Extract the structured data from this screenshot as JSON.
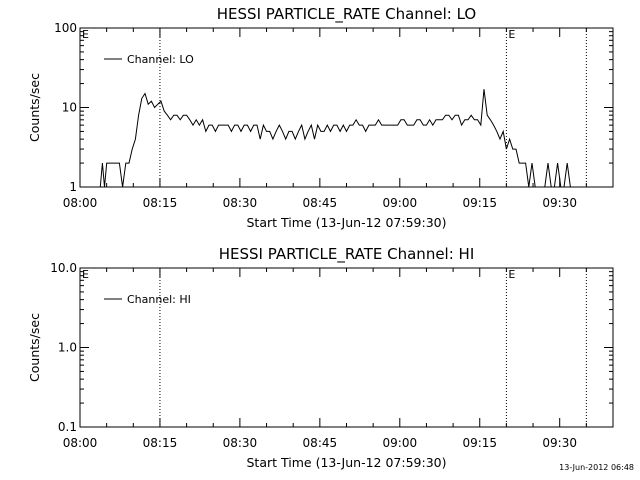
{
  "chart_data": [
    {
      "type": "line",
      "title": "HESSI PARTICLE_RATE Channel: LO",
      "xlabel": "Start Time (13-Jun-12 07:59:30)",
      "ylabel": "Counts/sec",
      "yscale": "log",
      "ylim": [
        1,
        100
      ],
      "yticks": [
        1,
        10,
        100
      ],
      "ytick_labels": [
        "1",
        "10",
        "100"
      ],
      "xlim_min": [
        0,
        100
      ],
      "xtick_labels": [
        "08:00",
        "08:15",
        "08:30",
        "08:45",
        "09:00",
        "09:15",
        "09:30"
      ],
      "xtick_min": [
        0,
        15,
        30,
        45,
        60,
        75,
        90
      ],
      "event_markers": [
        {
          "t_min": 15,
          "label": ""
        },
        {
          "t_min": 80,
          "label": "E"
        },
        {
          "t_min": 95,
          "label": ""
        }
      ],
      "start_label": "E",
      "series": [
        {
          "name": "Channel: LO",
          "t_min": [
            3.8,
            4.2,
            4.6,
            5,
            5.6,
            6.2,
            6.8,
            7.4,
            8,
            8.6,
            9.2,
            9.8,
            10.4,
            11,
            11.6,
            12.2,
            12.8,
            13.4,
            14,
            14.6,
            15.2,
            15.8,
            16.4,
            17,
            17.6,
            18.2,
            18.8,
            19.4,
            20,
            20.6,
            21.2,
            21.8,
            22.4,
            23,
            23.6,
            24.2,
            24.8,
            25.4,
            26,
            26.6,
            27.2,
            27.8,
            28.4,
            29,
            29.6,
            30.2,
            30.8,
            31.4,
            32,
            32.6,
            33.2,
            33.8,
            34.4,
            35,
            35.6,
            36.2,
            36.8,
            37.4,
            38,
            38.6,
            39.2,
            39.8,
            40.4,
            41,
            41.6,
            42.2,
            42.8,
            43.4,
            44,
            44.6,
            45.2,
            45.8,
            46.4,
            47,
            47.6,
            48.2,
            48.8,
            49.4,
            50,
            50.6,
            51.2,
            51.8,
            52.4,
            53,
            53.6,
            54.2,
            54.8,
            55.4,
            56,
            56.6,
            57.2,
            57.8,
            58.4,
            59,
            59.6,
            60.2,
            60.8,
            61.4,
            62,
            62.6,
            63.2,
            63.8,
            64.4,
            65,
            65.6,
            66.2,
            66.8,
            67.4,
            68,
            68.6,
            69.2,
            69.8,
            70.4,
            71,
            71.6,
            72.2,
            72.8,
            73.4,
            74,
            74.6,
            75.2,
            75.8,
            76.4,
            77,
            77.6,
            78.2,
            78.8,
            79.4,
            80,
            80.6,
            81.2,
            81.8,
            82.4,
            83,
            83.6,
            84.2,
            84.8,
            85.4,
            86,
            86.6,
            87.2,
            87.8,
            88.4,
            89,
            89.6,
            90.2,
            90.8,
            91.4,
            92,
            92.6,
            93.2,
            93.8,
            94.4
          ],
          "values": [
            1,
            2,
            1,
            2,
            2,
            2,
            2,
            2,
            1,
            2,
            2,
            3,
            4,
            8,
            13,
            15,
            11,
            12,
            10,
            11,
            12,
            9,
            8,
            7,
            8,
            8,
            7,
            8,
            8,
            7,
            6,
            7,
            6,
            7,
            5,
            6,
            6,
            5,
            6,
            6,
            6,
            6,
            5,
            6,
            6,
            5,
            6,
            6,
            5,
            6,
            6,
            4,
            6,
            5,
            5,
            4,
            5,
            6,
            5,
            4,
            5,
            5,
            4,
            5,
            6,
            4,
            5,
            6,
            4,
            6,
            5,
            5,
            6,
            5,
            6,
            6,
            5,
            6,
            5,
            6,
            6,
            7,
            6,
            6,
            5,
            6,
            6,
            6,
            7,
            6,
            6,
            6,
            6,
            6,
            6,
            7,
            7,
            6,
            6,
            6,
            7,
            7,
            6,
            6,
            7,
            6,
            7,
            7,
            7,
            8,
            8,
            7,
            8,
            8,
            6,
            7,
            7,
            8,
            7,
            7,
            6,
            17,
            8,
            7,
            6,
            5,
            4,
            5,
            3,
            4,
            3,
            3,
            2,
            2,
            2,
            1,
            2,
            1,
            1,
            1,
            1,
            2,
            1,
            1,
            2,
            1,
            1,
            2,
            1,
            1,
            1
          ]
        }
      ]
    },
    {
      "type": "line",
      "title": "HESSI PARTICLE_RATE Channel: HI",
      "xlabel": "Start Time (13-Jun-12 07:59:30)",
      "ylabel": "Counts/sec",
      "yscale": "log",
      "ylim": [
        0.1,
        10
      ],
      "yticks": [
        0.1,
        1,
        10
      ],
      "ytick_labels": [
        "0.1",
        "1.0",
        "10.0"
      ],
      "xlim_min": [
        0,
        100
      ],
      "xtick_labels": [
        "08:00",
        "08:15",
        "08:30",
        "08:45",
        "09:00",
        "09:15",
        "09:30"
      ],
      "xtick_min": [
        0,
        15,
        30,
        45,
        60,
        75,
        90
      ],
      "event_markers": [
        {
          "t_min": 15,
          "label": ""
        },
        {
          "t_min": 80,
          "label": "E"
        },
        {
          "t_min": 95,
          "label": ""
        }
      ],
      "start_label": "E",
      "series": [
        {
          "name": "Channel: HI",
          "t_min": [],
          "values": []
        }
      ]
    }
  ],
  "footer": {
    "timestamp": "13-Jun-2012 06:48"
  }
}
